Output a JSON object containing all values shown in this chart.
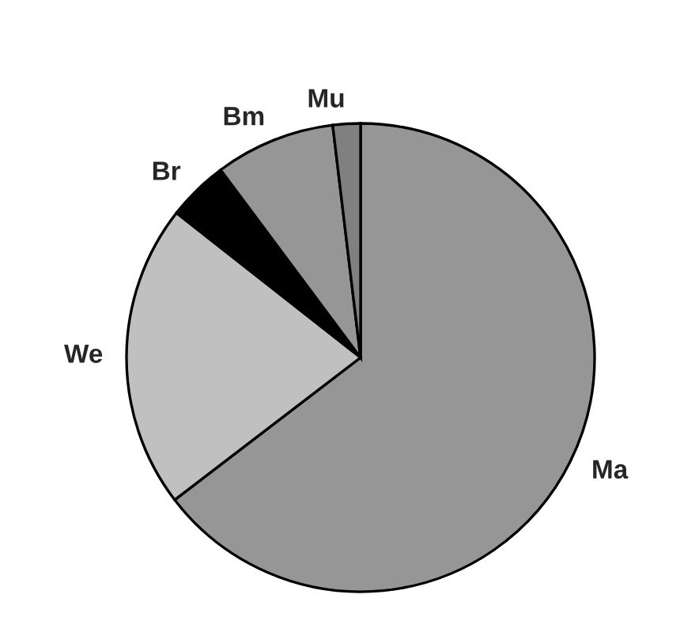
{
  "chart_data": {
    "type": "pie",
    "categories": [
      "Ma",
      "We",
      "Br",
      "Bm",
      "Mu"
    ],
    "values": [
      64.6,
      21.0,
      4.2,
      8.3,
      1.9
    ],
    "colors": [
      "#969696",
      "#c0c0c0",
      "#000000",
      "#969696",
      "#808080"
    ],
    "legend": false
  }
}
